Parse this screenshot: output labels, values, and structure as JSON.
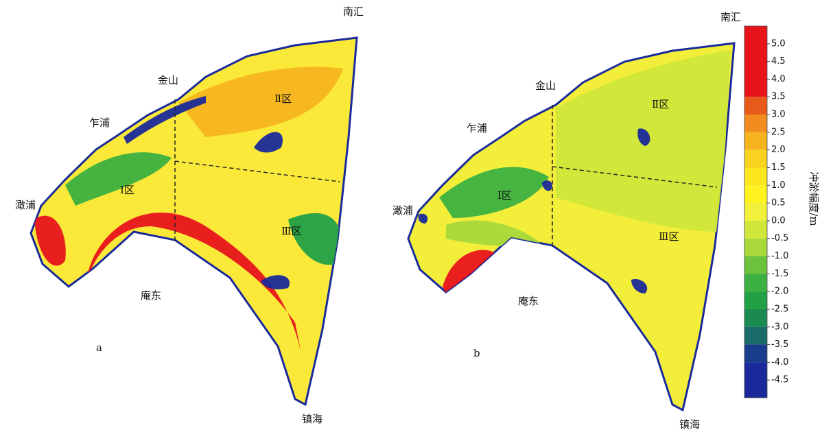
{
  "panels": [
    {
      "label": "a",
      "places": [
        "南汇",
        "金山",
        "乍浦",
        "澉浦",
        "庵东",
        "镇海"
      ],
      "zones": [
        "Ⅰ区",
        "Ⅱ区",
        "Ⅲ区"
      ]
    },
    {
      "label": "b",
      "places": [
        "南汇",
        "金山",
        "乍浦",
        "澉浦",
        "庵东",
        "镇海"
      ],
      "zones": [
        "Ⅰ区",
        "Ⅱ区",
        "Ⅲ区"
      ]
    }
  ],
  "colorbar": {
    "label": "冲淤幅度/m",
    "lim": [
      -5,
      5.5
    ],
    "edges": [
      5.5,
      3.5,
      3.0,
      2.5,
      2.0,
      1.5,
      1.0,
      0.5,
      0,
      -0.5,
      -1.0,
      -1.5,
      -2.0,
      -2.5,
      -3.0,
      -3.5,
      -4.0,
      -5
    ],
    "colors": [
      "#e8141c",
      "#e85a1a",
      "#f08c1e",
      "#f5b41e",
      "#f8d21e",
      "#fce61e",
      "#fff21e",
      "#f1f03a",
      "#cfe63a",
      "#a8d83a",
      "#6cc23c",
      "#3cb040",
      "#22a046",
      "#1a8a50",
      "#1a6a6a",
      "#1a3c8c",
      "#1a2a9a"
    ],
    "ticks": [
      {
        "value": 5,
        "label": "5.0"
      },
      4.5,
      {
        "value": 4,
        "label": "4.0"
      },
      3.5,
      {
        "value": 3,
        "label": "3.0"
      },
      2.5,
      {
        "value": 2,
        "label": "2.0"
      },
      1.5,
      {
        "value": 1,
        "label": "1.0"
      },
      0.5,
      {
        "value": 0,
        "label": "0.0"
      },
      -0.5,
      {
        "value": -1,
        "label": "-1.0"
      },
      -1.5,
      {
        "value": -2,
        "label": "-2.0"
      },
      -2.5,
      {
        "value": -3,
        "label": "-3.0"
      },
      -3.5,
      {
        "value": -4,
        "label": "-4.0"
      },
      -4.5
    ]
  }
}
